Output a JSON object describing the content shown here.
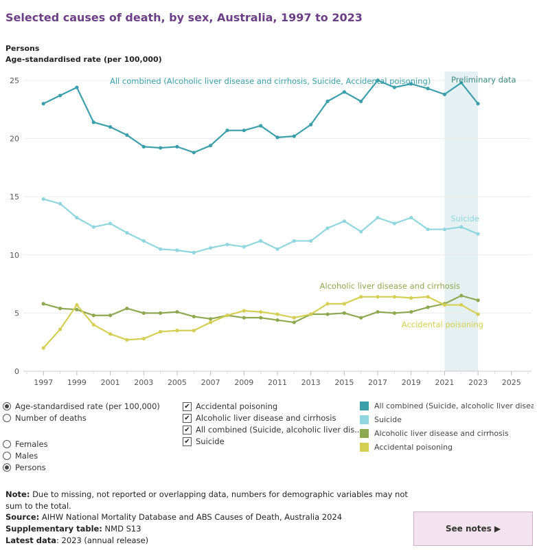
{
  "header": {
    "title": "Selected causes of death, by sex, Australia, 1997 to 2023",
    "subtitle": "Persons",
    "axis_title": "Age-standardised rate (per 100,000)"
  },
  "chart_data": {
    "type": "line",
    "x_ticks": [
      1997,
      1999,
      2001,
      2003,
      2005,
      2007,
      2009,
      2011,
      2013,
      2015,
      2017,
      2019,
      2021,
      2023,
      2025
    ],
    "y_ticks": [
      0,
      5,
      10,
      15,
      20,
      25
    ],
    "xlim": [
      1995.8,
      2026.2
    ],
    "ylim": [
      0,
      26
    ],
    "preliminary": {
      "label": "Preliminary data",
      "from": 2021,
      "to": 2023,
      "color": "#e4f0f2"
    },
    "series": [
      {
        "name": "All combined (Alcoholic liver disease and cirrhosis, Suicide, Accidental poisoning)",
        "color": "#3a9faa",
        "x": [
          1997,
          1998,
          1999,
          2000,
          2001,
          2002,
          2003,
          2004,
          2005,
          2006,
          2007,
          2008,
          2009,
          2010,
          2011,
          2012,
          2013,
          2014,
          2015,
          2016,
          2017,
          2018,
          2019,
          2020,
          2021,
          2022,
          2023
        ],
        "values": [
          23.0,
          23.7,
          24.4,
          21.4,
          21.0,
          20.3,
          19.3,
          19.2,
          19.3,
          18.8,
          19.4,
          20.7,
          20.7,
          21.1,
          20.1,
          20.2,
          21.2,
          23.2,
          24.0,
          23.2,
          25.0,
          24.4,
          24.7,
          24.3,
          23.8,
          24.8,
          23.0
        ]
      },
      {
        "name": "Suicide",
        "color": "#8fd6df",
        "x": [
          1997,
          1998,
          1999,
          2000,
          2001,
          2002,
          2003,
          2004,
          2005,
          2006,
          2007,
          2008,
          2009,
          2010,
          2011,
          2012,
          2013,
          2014,
          2015,
          2016,
          2017,
          2018,
          2019,
          2020,
          2021,
          2022,
          2023
        ],
        "values": [
          14.8,
          14.4,
          13.2,
          12.4,
          12.7,
          11.9,
          11.2,
          10.5,
          10.4,
          10.2,
          10.6,
          10.9,
          10.7,
          11.2,
          10.5,
          11.2,
          11.2,
          12.3,
          12.9,
          12.0,
          13.2,
          12.7,
          13.2,
          12.2,
          12.2,
          12.4,
          11.8
        ]
      },
      {
        "name": "Alcoholic liver disease and cirrhosis",
        "color": "#8ea84f",
        "x": [
          1997,
          1998,
          1999,
          2000,
          2001,
          2002,
          2003,
          2004,
          2005,
          2006,
          2007,
          2008,
          2009,
          2010,
          2011,
          2012,
          2013,
          2014,
          2015,
          2016,
          2017,
          2018,
          2019,
          2020,
          2021,
          2022,
          2023
        ],
        "values": [
          5.8,
          5.4,
          5.3,
          4.8,
          4.8,
          5.4,
          5.0,
          5.0,
          5.1,
          4.7,
          4.5,
          4.8,
          4.6,
          4.6,
          4.4,
          4.2,
          4.9,
          4.9,
          5.0,
          4.6,
          5.1,
          5.0,
          5.1,
          5.5,
          5.8,
          6.5,
          6.1
        ]
      },
      {
        "name": "Accidental poisoning",
        "color": "#d4cf52",
        "x": [
          1997,
          1998,
          1999,
          2000,
          2001,
          2002,
          2003,
          2004,
          2005,
          2006,
          2007,
          2008,
          2009,
          2010,
          2011,
          2012,
          2013,
          2014,
          2015,
          2016,
          2017,
          2018,
          2019,
          2020,
          2021,
          2022,
          2023
        ],
        "values": [
          2.0,
          3.6,
          5.7,
          4.0,
          3.2,
          2.7,
          2.8,
          3.4,
          3.5,
          3.5,
          4.2,
          4.8,
          5.2,
          5.1,
          4.9,
          4.6,
          4.9,
          5.8,
          5.8,
          6.4,
          6.4,
          6.4,
          6.3,
          6.4,
          5.7,
          5.7,
          4.9
        ]
      }
    ],
    "annotations": [
      {
        "text": "All combined (Alcoholic liver disease and cirrhosis, Suicide, Accidental poisoning)",
        "color": "#3a9faa"
      },
      {
        "text": "Preliminary data",
        "color": "#3a8a82"
      },
      {
        "text": "Suicide",
        "color": "#8fd6df"
      },
      {
        "text": "Alcoholic liver disease and cirrhosis",
        "color": "#8ea84f"
      },
      {
        "text": "Accidental poisoning",
        "color": "#d4cf52"
      }
    ],
    "grid": true
  },
  "measure_options": [
    {
      "label": "Age-standardised rate (per 100,000)",
      "selected": true
    },
    {
      "label": "Number of deaths",
      "selected": false
    }
  ],
  "sex_options": [
    {
      "label": "Females",
      "selected": false
    },
    {
      "label": "Males",
      "selected": false
    },
    {
      "label": "Persons",
      "selected": true
    }
  ],
  "cause_filters": [
    {
      "label": "Accidental poisoning",
      "checked": true
    },
    {
      "label": "Alcoholic liver disease and cirrhosis",
      "checked": true
    },
    {
      "label": "All combined (Suicide, alcoholic liver dis..",
      "checked": true
    },
    {
      "label": "Suicide",
      "checked": true
    }
  ],
  "legend": [
    {
      "label": "All combined (Suicide, alcoholic liver disease ..",
      "color": "#3a9faa"
    },
    {
      "label": "Suicide",
      "color": "#8fd6df"
    },
    {
      "label": "Alcoholic liver disease and cirrhosis",
      "color": "#8ea84f"
    },
    {
      "label": "Accidental poisoning",
      "color": "#d4cf52"
    }
  ],
  "footer": {
    "note_label": "Note:",
    "note_text": " Due to missing, not reported or overlapping data, numbers for demographic variables may not",
    "note_text2": "sum to the total.",
    "source_label": "Source:",
    "source_text": " AIHW National Mortality Database and ABS Causes of Death, Australia 2024",
    "supp_label": "Supplementary table:",
    "supp_text": " NMD S13",
    "latest_label": "Latest data",
    "latest_text": ": 2023 (annual release)"
  },
  "see_notes": {
    "label": "See notes ▶"
  }
}
